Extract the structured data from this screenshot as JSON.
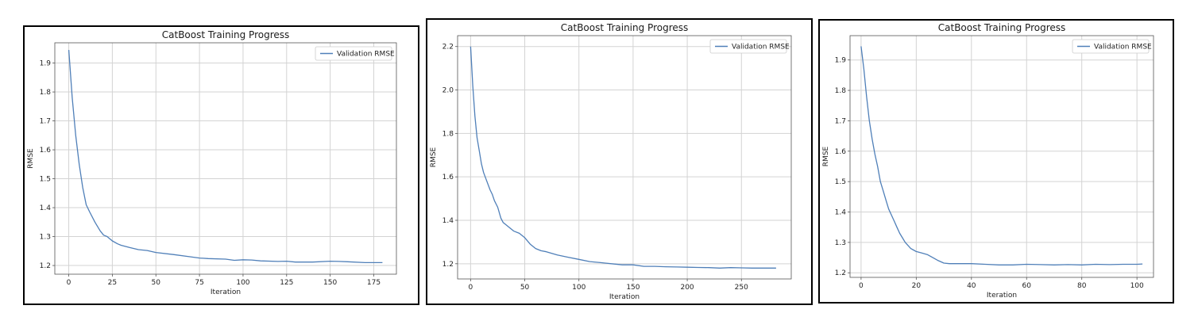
{
  "colors": {
    "line": "#4f7fb8",
    "grid": "#d3d3d3",
    "axis": "#555555",
    "frame": "#000000"
  },
  "chart_data": [
    {
      "type": "line",
      "title": "CatBoost Training Progress",
      "xlabel": "Iteration",
      "ylabel": "RMSE",
      "grid": true,
      "legend_position": "top-right",
      "xlim": [
        -8,
        188
      ],
      "ylim": [
        1.17,
        1.97
      ],
      "xticks": [
        0,
        25,
        50,
        75,
        100,
        125,
        150,
        175
      ],
      "yticks": [
        1.2,
        1.3,
        1.4,
        1.5,
        1.6,
        1.7,
        1.8,
        1.9
      ],
      "series": [
        {
          "name": "Validation RMSE",
          "x": [
            0,
            2,
            4,
            6,
            8,
            10,
            12,
            15,
            18,
            20,
            22,
            25,
            28,
            30,
            35,
            40,
            45,
            50,
            60,
            70,
            75,
            80,
            90,
            95,
            100,
            105,
            110,
            120,
            125,
            130,
            140,
            150,
            155,
            160,
            170,
            180
          ],
          "y": [
            1.945,
            1.78,
            1.65,
            1.55,
            1.47,
            1.41,
            1.385,
            1.35,
            1.32,
            1.305,
            1.3,
            1.285,
            1.275,
            1.27,
            1.262,
            1.255,
            1.252,
            1.245,
            1.238,
            1.23,
            1.226,
            1.224,
            1.222,
            1.218,
            1.22,
            1.219,
            1.216,
            1.214,
            1.215,
            1.212,
            1.212,
            1.215,
            1.214,
            1.213,
            1.21,
            1.21
          ]
        }
      ]
    },
    {
      "type": "line",
      "title": "CatBoost Training Progress",
      "xlabel": "Iteration",
      "ylabel": "RMSE",
      "grid": true,
      "legend_position": "top-right",
      "xlim": [
        -12,
        296
      ],
      "ylim": [
        1.13,
        2.25
      ],
      "xticks": [
        0,
        50,
        100,
        150,
        200,
        250
      ],
      "yticks": [
        1.2,
        1.4,
        1.6,
        1.8,
        2.0,
        2.2
      ],
      "series": [
        {
          "name": "Validation RMSE",
          "x": [
            0,
            2,
            4,
            6,
            8,
            10,
            12,
            15,
            18,
            20,
            22,
            25,
            28,
            30,
            35,
            40,
            45,
            50,
            55,
            60,
            65,
            70,
            80,
            90,
            100,
            110,
            120,
            130,
            140,
            150,
            160,
            170,
            180,
            190,
            200,
            210,
            220,
            230,
            240,
            250,
            260,
            270,
            282
          ],
          "y": [
            2.2,
            2.02,
            1.88,
            1.78,
            1.72,
            1.66,
            1.62,
            1.58,
            1.54,
            1.52,
            1.49,
            1.46,
            1.41,
            1.39,
            1.37,
            1.35,
            1.34,
            1.32,
            1.29,
            1.27,
            1.26,
            1.255,
            1.24,
            1.23,
            1.22,
            1.21,
            1.205,
            1.2,
            1.195,
            1.195,
            1.188,
            1.188,
            1.186,
            1.185,
            1.184,
            1.183,
            1.182,
            1.18,
            1.182,
            1.181,
            1.18,
            1.18,
            1.18
          ]
        }
      ]
    },
    {
      "type": "line",
      "title": "CatBoost Training Progress",
      "xlabel": "Iteration",
      "ylabel": "RMSE",
      "grid": true,
      "legend_position": "top-right",
      "xlim": [
        -4,
        106
      ],
      "ylim": [
        1.185,
        1.98
      ],
      "xticks": [
        0,
        20,
        40,
        60,
        80,
        100
      ],
      "yticks": [
        1.2,
        1.3,
        1.4,
        1.5,
        1.6,
        1.7,
        1.8,
        1.9
      ],
      "series": [
        {
          "name": "Validation RMSE",
          "x": [
            0,
            1,
            2,
            3,
            4,
            5,
            6,
            7,
            8,
            9,
            10,
            11,
            12,
            13,
            14,
            15,
            16,
            17,
            18,
            19,
            20,
            22,
            24,
            26,
            28,
            30,
            32,
            34,
            36,
            40,
            45,
            50,
            55,
            60,
            65,
            70,
            75,
            80,
            85,
            90,
            95,
            100,
            102
          ],
          "y": [
            1.945,
            1.87,
            1.78,
            1.7,
            1.64,
            1.59,
            1.55,
            1.5,
            1.47,
            1.44,
            1.41,
            1.39,
            1.37,
            1.35,
            1.33,
            1.315,
            1.3,
            1.29,
            1.28,
            1.275,
            1.27,
            1.265,
            1.26,
            1.25,
            1.24,
            1.232,
            1.23,
            1.23,
            1.23,
            1.23,
            1.228,
            1.226,
            1.226,
            1.228,
            1.227,
            1.226,
            1.227,
            1.226,
            1.228,
            1.227,
            1.228,
            1.228,
            1.229
          ]
        }
      ]
    }
  ]
}
